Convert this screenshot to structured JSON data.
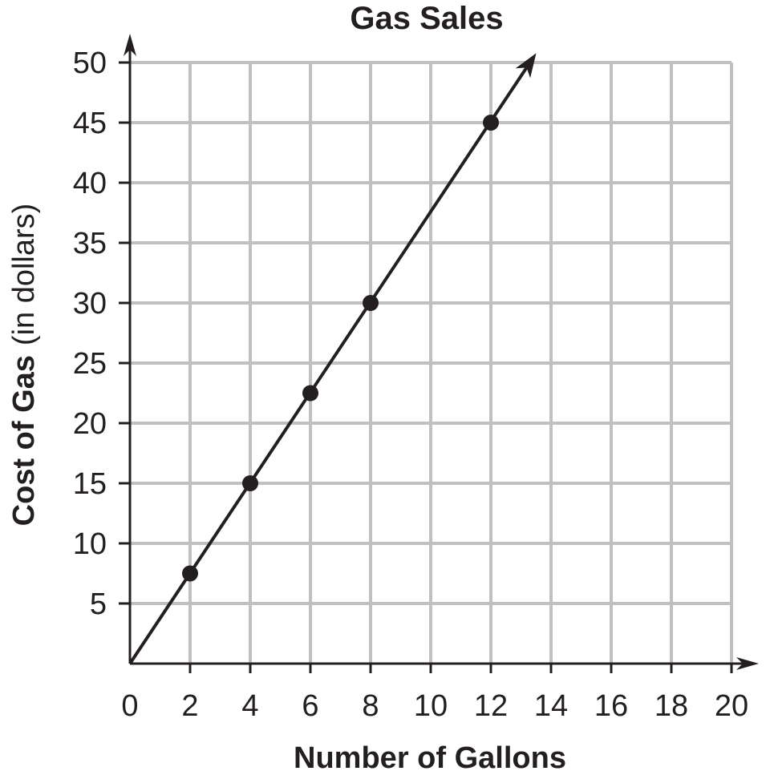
{
  "chart_data": {
    "type": "line",
    "title": "Gas Sales",
    "xlabel": "Number of Gallons",
    "ylabel_bold": "Cost of Gas",
    "ylabel_unit": "(in dollars)",
    "xlim": [
      0,
      20
    ],
    "ylim": [
      0,
      50
    ],
    "x_ticks": [
      0,
      2,
      4,
      6,
      8,
      10,
      12,
      14,
      16,
      18,
      20
    ],
    "y_ticks": [
      5,
      10,
      15,
      20,
      25,
      30,
      35,
      40,
      45,
      50
    ],
    "grid": true,
    "line": {
      "from": [
        0,
        0
      ],
      "to": [
        13.3,
        50
      ],
      "arrow_end": true
    },
    "points": [
      {
        "x": 2,
        "y": 7.5
      },
      {
        "x": 4,
        "y": 15
      },
      {
        "x": 6,
        "y": 22.5
      },
      {
        "x": 8,
        "y": 30
      },
      {
        "x": 12,
        "y": 45
      }
    ],
    "colors": {
      "ink": "#231f20",
      "grid": "#c0c0c2"
    }
  }
}
